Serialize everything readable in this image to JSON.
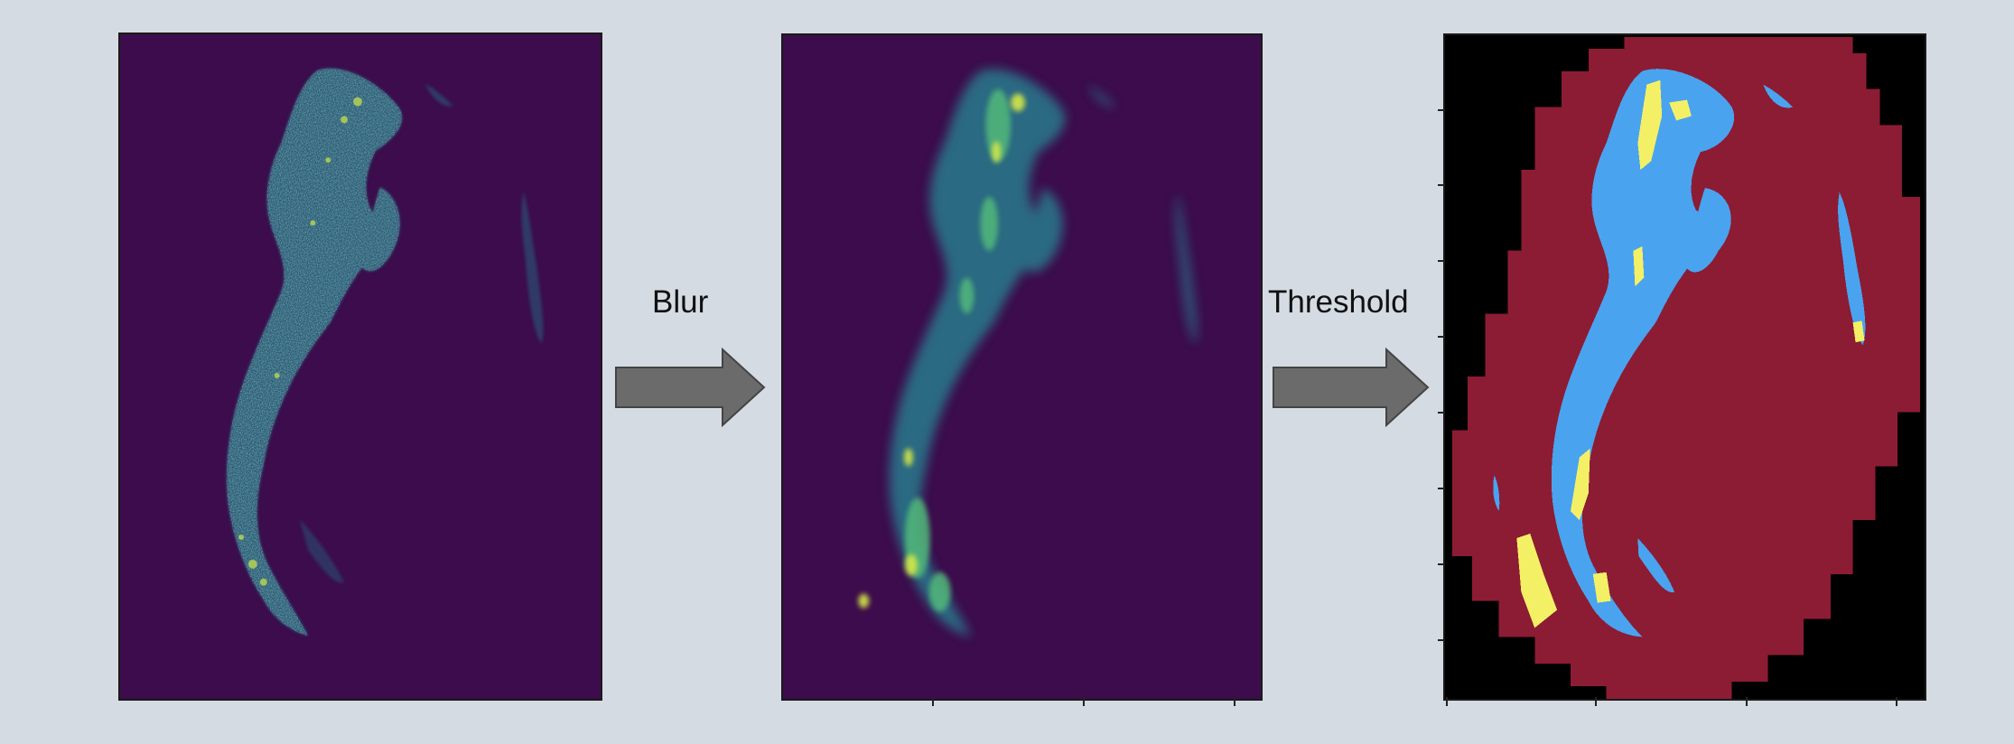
{
  "steps": {
    "blur_label": "Blur",
    "threshold_label": "Threshold"
  },
  "panels": [
    {
      "id": "raw",
      "kind": "raw-intensity-image",
      "background": "#3c0c4c"
    },
    {
      "id": "blur",
      "kind": "blurred-intensity-image",
      "background": "#3c0c4c"
    },
    {
      "id": "threshold",
      "kind": "segmentation-mask",
      "background": "#000000"
    }
  ],
  "colors": {
    "page_background": "#d5dbe2",
    "viridis_low": "#3c0c4c",
    "viridis_mid": "#2b8a8a",
    "viridis_high": "#d6e84a",
    "mask_region": "#8c1c33",
    "mask_foreground": "#4aa3ef",
    "mask_highlight": "#f4f066",
    "arrow_fill": "#6b6b6b",
    "arrow_stroke": "#444444"
  },
  "icons": {
    "step_arrow": "right-arrow-icon"
  }
}
